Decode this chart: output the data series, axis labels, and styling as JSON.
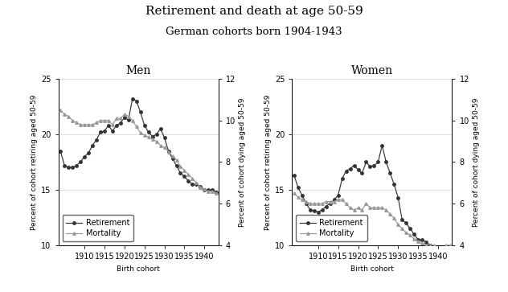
{
  "title": "Retirement and death at age 50-59",
  "subtitle": "German cohorts born 1904-1943",
  "xlabel": "Birth cohort",
  "ylabel_left": "Percent of cohort retiring aged 50-59",
  "ylabel_right": "Percent of cohort dying aged 50-59",
  "men_ret_x": [
    1904,
    1905,
    1906,
    1907,
    1908,
    1909,
    1910,
    1911,
    1912,
    1913,
    1914,
    1915,
    1916,
    1917,
    1918,
    1919,
    1920,
    1921,
    1922,
    1923,
    1924,
    1925,
    1926,
    1927,
    1928,
    1929,
    1930,
    1931,
    1932,
    1933,
    1934,
    1935,
    1936,
    1937,
    1938,
    1939,
    1940,
    1941,
    1942,
    1943
  ],
  "men_ret_y": [
    18.5,
    17.2,
    17.0,
    17.0,
    17.2,
    17.5,
    18.0,
    18.3,
    19.0,
    19.5,
    20.2,
    20.3,
    20.8,
    20.3,
    20.8,
    21.0,
    21.5,
    21.3,
    23.2,
    23.0,
    22.0,
    20.8,
    20.2,
    19.8,
    20.0,
    20.5,
    19.7,
    18.5,
    17.8,
    17.2,
    16.5,
    16.2,
    15.8,
    15.5,
    15.5,
    15.3,
    15.0,
    15.0,
    15.0,
    14.8
  ],
  "men_mort_x": [
    1904,
    1905,
    1906,
    1907,
    1908,
    1909,
    1910,
    1911,
    1912,
    1913,
    1914,
    1915,
    1916,
    1917,
    1918,
    1919,
    1920,
    1921,
    1922,
    1923,
    1924,
    1925,
    1926,
    1927,
    1928,
    1929,
    1930,
    1931,
    1932,
    1933,
    1934,
    1935,
    1936,
    1937,
    1938,
    1939,
    1940,
    1941,
    1942,
    1943
  ],
  "men_mort_y": [
    10.5,
    10.3,
    10.2,
    10.0,
    9.9,
    9.8,
    9.8,
    9.8,
    9.8,
    9.9,
    10.0,
    10.0,
    10.0,
    9.8,
    10.1,
    10.1,
    10.3,
    10.2,
    10.0,
    9.7,
    9.4,
    9.3,
    9.2,
    9.1,
    9.0,
    8.8,
    8.7,
    8.5,
    8.3,
    8.1,
    7.8,
    7.6,
    7.4,
    7.2,
    7.0,
    6.8,
    6.7,
    6.6,
    6.6,
    6.5
  ],
  "women_ret_x": [
    1904,
    1905,
    1906,
    1907,
    1908,
    1909,
    1910,
    1911,
    1912,
    1913,
    1914,
    1915,
    1916,
    1917,
    1918,
    1919,
    1920,
    1921,
    1922,
    1923,
    1924,
    1925,
    1926,
    1927,
    1928,
    1929,
    1930,
    1931,
    1932,
    1933,
    1934,
    1935,
    1936,
    1937,
    1938,
    1939,
    1940,
    1941,
    1942,
    1943
  ],
  "women_ret_y": [
    16.3,
    15.2,
    14.5,
    13.8,
    13.2,
    13.1,
    13.0,
    13.2,
    13.5,
    13.8,
    14.1,
    14.5,
    16.0,
    16.7,
    16.9,
    17.2,
    16.8,
    16.5,
    17.5,
    17.1,
    17.2,
    17.5,
    19.0,
    17.5,
    16.5,
    15.5,
    14.3,
    12.3,
    12.0,
    11.5,
    11.0,
    10.5,
    10.5,
    10.3,
    10.0,
    9.5,
    9.2,
    9.0,
    9.5,
    9.5
  ],
  "women_mort_x": [
    1904,
    1905,
    1906,
    1907,
    1908,
    1909,
    1910,
    1911,
    1912,
    1913,
    1914,
    1915,
    1916,
    1917,
    1918,
    1919,
    1920,
    1921,
    1922,
    1923,
    1924,
    1925,
    1926,
    1927,
    1928,
    1929,
    1930,
    1931,
    1932,
    1933,
    1934,
    1935,
    1936,
    1937,
    1938,
    1939,
    1940,
    1941,
    1942,
    1943
  ],
  "women_mort_y": [
    6.5,
    6.3,
    6.2,
    6.1,
    6.0,
    6.0,
    6.0,
    6.0,
    6.1,
    6.1,
    6.1,
    6.2,
    6.2,
    6.0,
    5.8,
    5.7,
    5.8,
    5.7,
    6.0,
    5.8,
    5.8,
    5.8,
    5.8,
    5.7,
    5.5,
    5.3,
    5.0,
    4.8,
    4.6,
    4.5,
    4.3,
    4.2,
    4.1,
    4.0,
    4.0,
    4.0,
    3.9,
    3.9,
    4.0,
    4.0
  ],
  "ret_color": "#333333",
  "mort_color": "#999999",
  "xlim": [
    1904,
    1943
  ],
  "xticks": [
    1910,
    1915,
    1920,
    1925,
    1930,
    1935,
    1940
  ],
  "ylim_left": [
    10,
    25
  ],
  "yticks_left": [
    10,
    15,
    20,
    25
  ],
  "ylim_right": [
    4,
    12
  ],
  "yticks_right": [
    4,
    6,
    8,
    10,
    12
  ],
  "title_fontsize": 11,
  "subtitle_fontsize": 9.5,
  "label_fontsize": 6.5,
  "tick_fontsize": 7,
  "legend_fontsize": 7,
  "panel_title_fontsize": 10
}
